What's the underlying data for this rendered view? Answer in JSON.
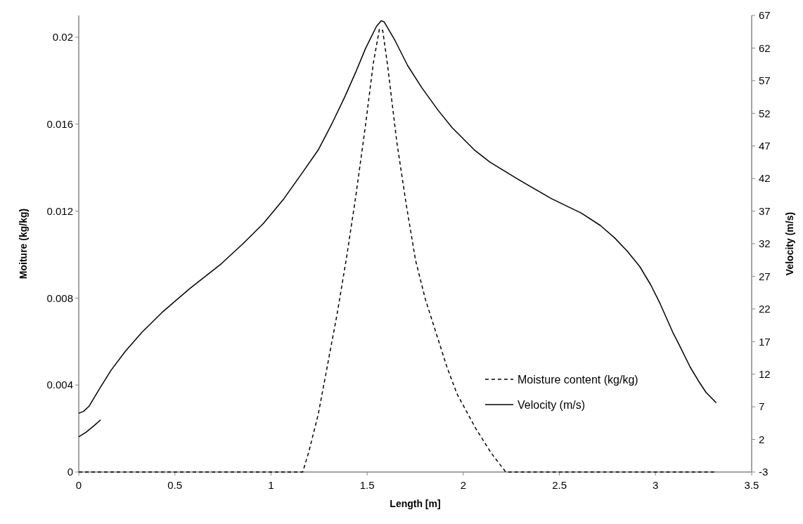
{
  "chart_data": {
    "type": "line",
    "xlabel": "Length [m]",
    "ylabel": "Moiture (kg/kg)",
    "y2label": "Velocity (m/s)",
    "xlim": [
      0,
      3.5
    ],
    "xticks": [
      0,
      0.5,
      1,
      1.5,
      2,
      2.5,
      3,
      3.5
    ],
    "ylim": [
      0,
      0.021
    ],
    "yticks": [
      0,
      0.004,
      0.008,
      0.012,
      0.016,
      0.02
    ],
    "y2lim": [
      -3,
      67
    ],
    "y2ticks": [
      -3,
      2,
      7,
      12,
      17,
      22,
      27,
      32,
      37,
      42,
      47,
      52,
      57,
      62,
      67
    ],
    "grid": false,
    "legend": "bottom right",
    "series": [
      {
        "name": "Moisture content (kg/kg)",
        "color": "#000000",
        "line_style": "dashed",
        "x": [
          0,
          0.5,
          1,
          1.165,
          1.197,
          1.246,
          1.295,
          1.344,
          1.393,
          1.442,
          1.491,
          1.532,
          1.564,
          1.581,
          1.605,
          1.654,
          1.703,
          1.752,
          1.803,
          1.915,
          1.967,
          2.065,
          2.147,
          2.221,
          2.5,
          3,
          3.32
        ],
        "values": [
          0,
          0,
          0,
          0,
          0.00094,
          0.00267,
          0.00497,
          0.00728,
          0.00987,
          0.01275,
          0.01592,
          0.0188,
          0.02038,
          0.02031,
          0.0188,
          0.0152,
          0.01232,
          0.00973,
          0.00794,
          0.00483,
          0.0036,
          0.002,
          0.00085,
          0,
          0,
          0,
          0
        ]
      },
      {
        "name": "Velocity (m/s)",
        "color": "#000000",
        "line_style": "solid",
        "axis": "y2",
        "x": [
          0,
          0.025,
          0.054,
          0.111,
          0.168,
          0.242,
          0.328,
          0.438,
          0.576,
          0.74,
          0.854,
          0.96,
          1.067,
          1.156,
          1.246,
          1.32,
          1.385,
          1.442,
          1.491,
          1.548,
          1.573,
          1.589,
          1.646,
          1.711,
          1.785,
          1.868,
          1.942,
          2.057,
          2.139,
          2.295,
          2.459,
          2.614,
          2.713,
          2.787,
          2.852,
          2.918,
          2.975,
          3.024,
          3.09,
          3.123,
          3.18,
          3.229,
          3.263,
          3.316
        ],
        "values": [
          6.0,
          6.3,
          7.1,
          9.9,
          12.6,
          15.5,
          18.4,
          21.6,
          25.1,
          28.9,
          32.0,
          35.1,
          38.9,
          42.6,
          46.4,
          50.6,
          54.6,
          58.4,
          61.9,
          65.3,
          66.2,
          66.0,
          63.1,
          59.3,
          55.9,
          52.5,
          49.8,
          46.4,
          44.5,
          41.7,
          38.9,
          36.7,
          34.8,
          32.9,
          30.9,
          28.5,
          25.7,
          22.8,
          18.4,
          16.5,
          13.1,
          10.7,
          9.2,
          7.6
        ]
      },
      {
        "color": "#000000",
        "line_style": "solid",
        "axis": "y2",
        "x": [
          0,
          0.038,
          0.079,
          0.114
        ],
        "values": [
          2.4,
          3.1,
          4.1,
          5.0
        ]
      }
    ]
  }
}
